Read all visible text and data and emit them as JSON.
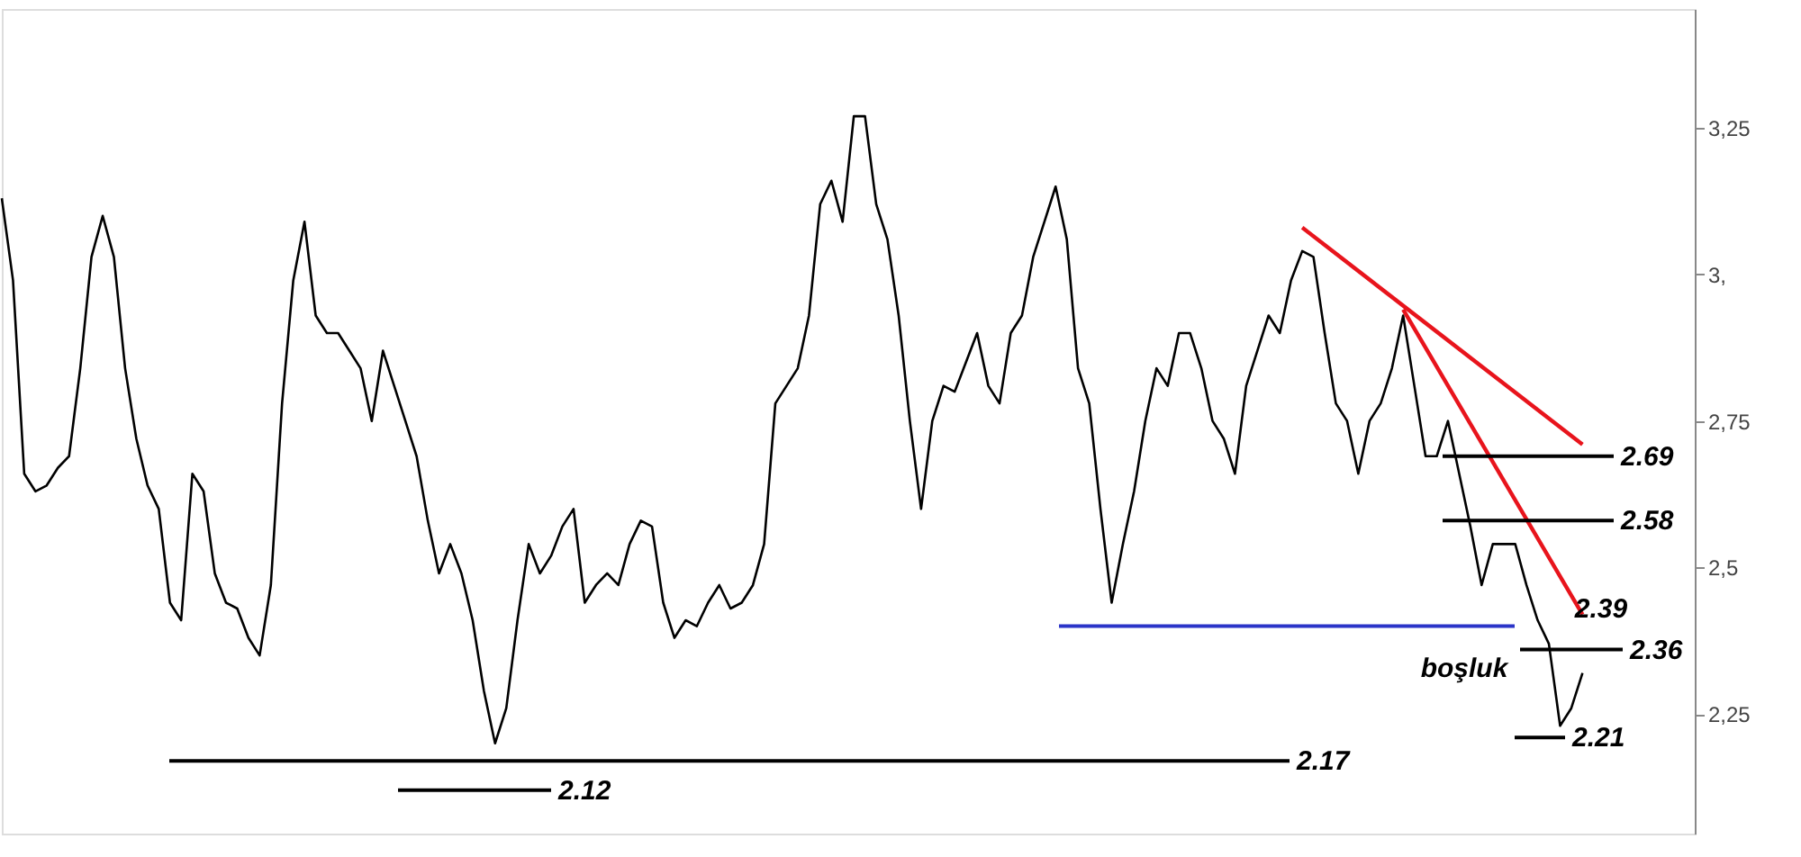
{
  "chart_data": {
    "type": "line",
    "tick_labels": "y",
    "grid": false,
    "marker": "none",
    "line_style": "solid",
    "categories": [
      null,
      null,
      null,
      null,
      null,
      null,
      null,
      null,
      null,
      null,
      null,
      null,
      null,
      null,
      null,
      null,
      null,
      null,
      null,
      null,
      null,
      null,
      null,
      null,
      null,
      null,
      null,
      null,
      null,
      null,
      null,
      null,
      null,
      null,
      null,
      null,
      null,
      null,
      null,
      null,
      null,
      null,
      null,
      null,
      null,
      null,
      null,
      null,
      null,
      null,
      null,
      null,
      null,
      null,
      null,
      null,
      null,
      null,
      null,
      null,
      null,
      null,
      null,
      null,
      null,
      null,
      null,
      null,
      null,
      null,
      null,
      null,
      null,
      null,
      null,
      null,
      null,
      null,
      null,
      null,
      null,
      null,
      null,
      null,
      null,
      null,
      null,
      null,
      null,
      null,
      null,
      null,
      null,
      null,
      null,
      null,
      null,
      null,
      null,
      null,
      null,
      null,
      null,
      null,
      null,
      null,
      null,
      null,
      null,
      null,
      null,
      null,
      null,
      null,
      null,
      null,
      null,
      null,
      null,
      null,
      null,
      null,
      null,
      null,
      null,
      null,
      null,
      null,
      null,
      null,
      null,
      null,
      null,
      null,
      null,
      null,
      null,
      null,
      null,
      null,
      null,
      null
    ],
    "series": [
      {
        "color": "#000000",
        "values": [
          3.13,
          2.99,
          2.66,
          2.63,
          2.64,
          2.67,
          2.69,
          2.84,
          3.03,
          3.1,
          3.03,
          2.84,
          2.72,
          2.64,
          2.6,
          2.44,
          2.41,
          2.66,
          2.63,
          2.49,
          2.44,
          2.43,
          2.38,
          2.35,
          2.47,
          2.78,
          2.99,
          3.09,
          2.93,
          2.9,
          2.9,
          2.87,
          2.84,
          2.75,
          2.87,
          2.81,
          2.75,
          2.69,
          2.58,
          2.49,
          2.54,
          2.49,
          2.41,
          2.29,
          2.2,
          2.26,
          2.41,
          2.54,
          2.49,
          2.52,
          2.57,
          2.6,
          2.44,
          2.47,
          2.49,
          2.47,
          2.54,
          2.58,
          2.57,
          2.44,
          2.38,
          2.41,
          2.4,
          2.44,
          2.47,
          2.43,
          2.44,
          2.47,
          2.54,
          2.78,
          2.81,
          2.84,
          2.93,
          3.12,
          3.16,
          3.09,
          3.27,
          3.27,
          3.12,
          3.06,
          2.93,
          2.75,
          2.6,
          2.75,
          2.81,
          2.8,
          2.85,
          2.9,
          2.81,
          2.78,
          2.9,
          2.93,
          3.03,
          3.09,
          3.15,
          3.06,
          2.84,
          2.78,
          2.6,
          2.44,
          2.54,
          2.63,
          2.75,
          2.84,
          2.81,
          2.9,
          2.9,
          2.84,
          2.75,
          2.72,
          2.66,
          2.81,
          2.87,
          2.93,
          2.9,
          2.99,
          3.04,
          3.03,
          2.9,
          2.78,
          2.75,
          2.66,
          2.75,
          2.78,
          2.84,
          2.93,
          2.81,
          2.69,
          2.69,
          2.75,
          2.66,
          2.57,
          2.47,
          2.54,
          2.54,
          2.54,
          2.47,
          2.41,
          2.37,
          2.23,
          2.26,
          2.32
        ]
      },
      {
        "color": "#e8141c",
        "values": [
          null,
          null,
          null,
          null,
          null,
          null,
          null,
          null,
          null,
          null,
          null,
          null,
          null,
          null,
          null,
          null,
          null,
          null,
          null,
          null,
          null,
          null,
          null,
          null,
          null,
          null,
          null,
          null,
          null,
          null,
          null,
          null,
          null,
          null,
          null,
          null,
          null,
          null,
          null,
          null,
          null,
          null,
          null,
          null,
          null,
          null,
          null,
          null,
          null,
          null,
          null,
          null,
          null,
          null,
          null,
          null,
          null,
          null,
          null,
          null,
          null,
          null,
          null,
          null,
          null,
          null,
          null,
          null,
          null,
          null,
          null,
          null,
          null,
          null,
          null,
          null,
          null,
          null,
          null,
          null,
          null,
          null,
          null,
          null,
          null,
          null,
          null,
          null,
          null,
          null,
          null,
          null,
          null,
          null,
          null,
          null,
          null,
          null,
          null,
          null,
          null,
          null,
          null,
          null,
          null,
          null,
          null,
          null,
          null,
          null,
          null,
          null,
          null,
          null,
          null,
          null,
          3.08,
          null,
          null,
          null,
          null,
          null,
          null,
          null,
          null,
          null,
          null,
          null,
          null,
          null,
          null,
          null,
          null,
          null,
          null,
          null,
          null,
          null,
          null,
          null,
          null,
          2.71
        ]
      },
      {
        "color": "#e8141c",
        "values": [
          null,
          null,
          null,
          null,
          null,
          null,
          null,
          null,
          null,
          null,
          null,
          null,
          null,
          null,
          null,
          null,
          null,
          null,
          null,
          null,
          null,
          null,
          null,
          null,
          null,
          null,
          null,
          null,
          null,
          null,
          null,
          null,
          null,
          null,
          null,
          null,
          null,
          null,
          null,
          null,
          null,
          null,
          null,
          null,
          null,
          null,
          null,
          null,
          null,
          null,
          null,
          null,
          null,
          null,
          null,
          null,
          null,
          null,
          null,
          null,
          null,
          null,
          null,
          null,
          null,
          null,
          null,
          null,
          null,
          null,
          null,
          null,
          null,
          null,
          null,
          null,
          null,
          null,
          null,
          null,
          null,
          null,
          null,
          null,
          null,
          null,
          null,
          null,
          null,
          null,
          null,
          null,
          null,
          null,
          null,
          null,
          null,
          null,
          null,
          null,
          null,
          null,
          null,
          null,
          null,
          null,
          null,
          null,
          null,
          null,
          null,
          null,
          null,
          null,
          null,
          null,
          null,
          null,
          null,
          null,
          null,
          null,
          null,
          null,
          null,
          2.94,
          null,
          null,
          null,
          null,
          null,
          null,
          null,
          null,
          null,
          null,
          null,
          null,
          null,
          null,
          null,
          2.42
        ]
      }
    ],
    "ylim": [
      2.046,
      3.453
    ],
    "yticks": [
      {
        "value": 3.25,
        "label": "3,25"
      },
      {
        "value": 3,
        "label": "3,"
      },
      {
        "value": 2.75,
        "label": "2,75"
      },
      {
        "value": 2.5,
        "label": "2,5"
      },
      {
        "value": 2.25,
        "label": "2,25"
      }
    ],
    "ref_lines": [
      {
        "axis": "y",
        "value": 2.69,
        "label": "2.69",
        "color": "#000000"
      },
      {
        "axis": "y",
        "value": 2.58,
        "label": "2.58",
        "color": "#000000"
      },
      {
        "axis": "y",
        "value": 2.4,
        "label": null,
        "color": "#2b35c8"
      },
      {
        "axis": "y",
        "value": 2.36,
        "label": "2.36",
        "color": "#000000"
      },
      {
        "axis": "y",
        "value": 2.21,
        "label": "2.21",
        "color": "#000000"
      },
      {
        "axis": "y",
        "value": 2.17,
        "label": "2.17",
        "color": "#000000"
      },
      {
        "axis": "y",
        "value": 2.12,
        "label": "2.12",
        "color": "#000000"
      }
    ],
    "annotations": [
      "2.39",
      "boşluk"
    ]
  }
}
